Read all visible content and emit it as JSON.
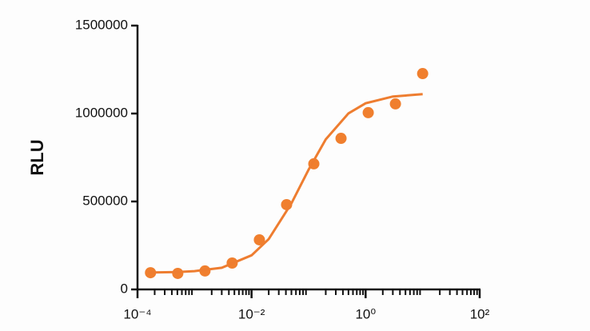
{
  "chart_data": {
    "type": "scatter",
    "y_label": "RLU",
    "xscale": "log",
    "xlim": [
      0.0001,
      100
    ],
    "ylim": [
      0,
      1500000
    ],
    "xticks": [
      {
        "value": 0.0001,
        "label": "10⁻⁴"
      },
      {
        "value": 0.01,
        "label": "10⁻²"
      },
      {
        "value": 1,
        "label": "10⁰"
      },
      {
        "value": 100,
        "label": "10²"
      }
    ],
    "minor_ticks": true,
    "yticks": [
      0,
      500000,
      1000000,
      1500000
    ],
    "grid": false,
    "series": [
      {
        "type": "scatter",
        "color": "#f07f2e",
        "x": [
          0.000169,
          0.000508,
          0.001524,
          0.004572,
          0.01372,
          0.04115,
          0.1235,
          0.3704,
          1.111,
          3.333,
          10
        ],
        "values": [
          95000,
          91000,
          105000,
          150000,
          282000,
          482000,
          714000,
          859000,
          1005000,
          1055000,
          1227000
        ]
      },
      {
        "type": "line",
        "color": "#ee7d30",
        "x": [
          0.00015,
          0.0005,
          0.001,
          0.003,
          0.01,
          0.02,
          0.05,
          0.1,
          0.2,
          0.5,
          1,
          3,
          10
        ],
        "values": [
          96000,
          99000,
          104000,
          123000,
          194000,
          286000,
          489000,
          681000,
          853000,
          1001000,
          1058000,
          1097000,
          1110000
        ]
      }
    ]
  }
}
